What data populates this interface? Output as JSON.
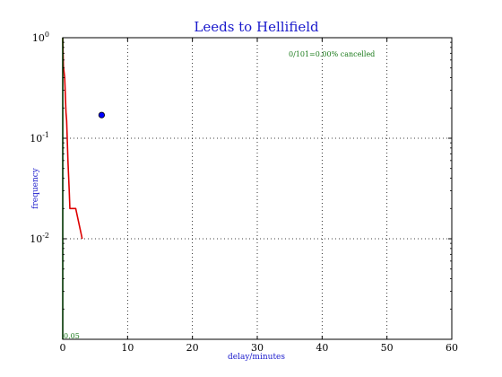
{
  "chart_data": {
    "type": "line",
    "title": "Leeds to Hellifield",
    "xlabel": "delay/minutes",
    "ylabel": "frequency",
    "xlim": [
      0,
      60
    ],
    "ylim": [
      0.001,
      1
    ],
    "yscale": "log",
    "grid": true,
    "x_ticks": [
      "0",
      "10",
      "20",
      "30",
      "40",
      "50",
      "60"
    ],
    "y_ticks": [
      {
        "value": 1,
        "base": "10",
        "exp": "0"
      },
      {
        "value": 0.1,
        "base": "10",
        "exp": "-1"
      },
      {
        "value": 0.01,
        "base": "10",
        "exp": "-2"
      }
    ],
    "series": [
      {
        "color": "#dd0000",
        "points": [
          [
            0,
            1.0
          ],
          [
            0.1,
            0.52
          ],
          [
            0.3,
            0.4
          ],
          [
            0.5,
            0.18
          ],
          [
            0.6,
            0.15
          ],
          [
            0.8,
            0.06
          ],
          [
            1.0,
            0.03
          ],
          [
            1.1,
            0.02
          ],
          [
            2.0,
            0.02
          ],
          [
            3.0,
            0.01
          ]
        ]
      },
      {
        "color": "#008800",
        "points": [
          [
            0,
            1.0
          ],
          [
            0,
            0.001
          ]
        ]
      }
    ],
    "marker": {
      "x": 6,
      "y": 0.17,
      "color": "#0000ff"
    },
    "annotations": {
      "cancelled": "0/101=0.00% cancelled",
      "corner": "0.05"
    }
  }
}
